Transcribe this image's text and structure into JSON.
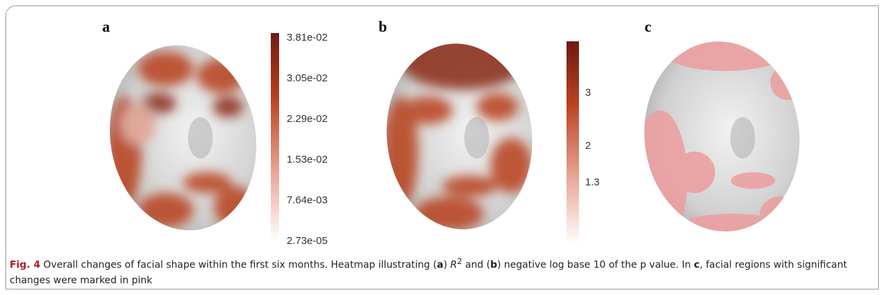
{
  "panels": [
    {
      "label": "a",
      "colorbar_ticks": [
        "3.81e-02",
        "3.05e-02",
        "2.29e-02",
        "1.53e-02",
        "7.64e-03",
        "2.73e-05"
      ]
    },
    {
      "label": "b",
      "colorbar_ticks": [
        "3",
        "2",
        "1.3"
      ]
    },
    {
      "label": "c"
    }
  ],
  "caption": {
    "fig_label": "Fig. 4",
    "parts": [
      " Overall changes of facial shape within the first six months. Heatmap illustrating (",
      "a",
      ") ",
      "R",
      "2",
      " and (",
      "b",
      ") negative log base 10 of the p value. In ",
      "c",
      ", facial regions with significant changes were marked in pink"
    ]
  }
}
